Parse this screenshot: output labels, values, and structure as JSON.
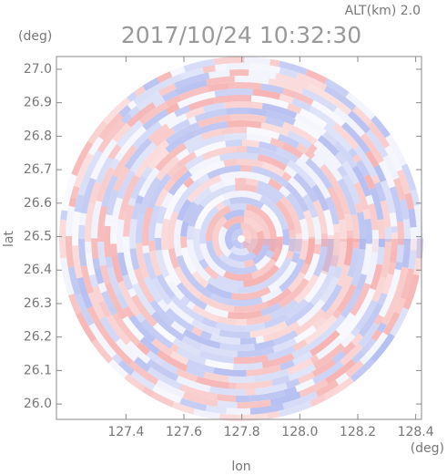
{
  "chart_data": {
    "type": "radar-ppi",
    "title": "2017/10/24 10:32:30",
    "altitude_label": "ALT(km)  2.0",
    "y_unit": "(deg)",
    "x_unit": "(deg)",
    "ylabel": "lat",
    "xlabel": "lon",
    "xlim": [
      127.16,
      128.42
    ],
    "ylim": [
      25.954,
      27.038
    ],
    "xticks": [
      127.4,
      127.6,
      127.8,
      {
        "value": 128,
        "label": "128.0"
      },
      128.2,
      128.4
    ],
    "yticks": [
      {
        "value": 27,
        "label": "27.0"
      },
      26.9,
      26.8,
      26.7,
      26.6,
      26.5,
      26.4,
      26.3,
      26.2,
      26.1,
      {
        "value": 26,
        "label": "26.0"
      }
    ]
  }
}
